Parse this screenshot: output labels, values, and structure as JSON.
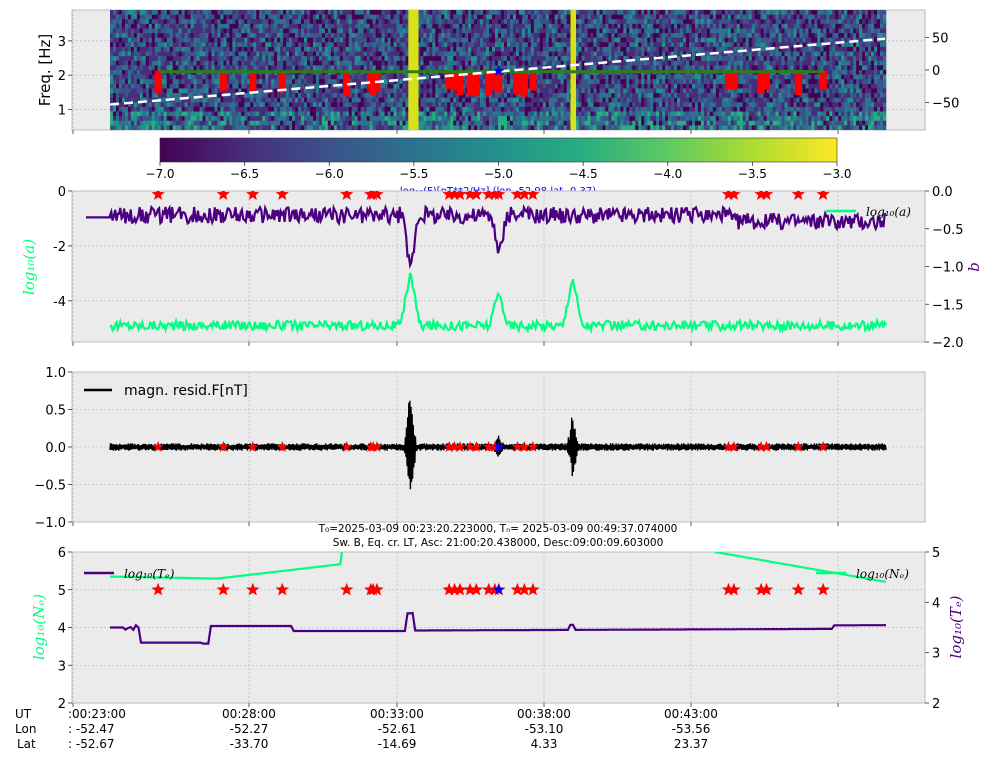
{
  "chart_data": [
    {
      "type": "heatmap",
      "ylabel": "Freq. [Hz]",
      "yticks": [
        1,
        2,
        3
      ],
      "ylim": [
        0.4,
        3.9
      ],
      "right_yticks": [
        "50",
        "0",
        "−50"
      ],
      "colorbar": {
        "ticks": [
          "−7.0",
          "−6.5",
          "−6.0",
          "−5.5",
          "−5.0",
          "−4.5",
          "−4.0",
          "−3.5",
          "−3.0"
        ],
        "range": [
          -7.0,
          -3.0
        ],
        "label": "log₁₀(F)[nT**2/Hz] (lon -52.98 lat -0.37)",
        "colormap": "viridis"
      },
      "bright_columns": [
        0.387,
        0.388,
        0.391,
        0.393,
        0.395,
        0.596,
        0.598
      ],
      "dashed_line": {
        "start": [
          0.046,
          -53
        ],
        "end": [
          1.0,
          48
        ],
        "color": "#ffffff"
      },
      "green_level": 2.1,
      "red_bar_centers": [
        0.062,
        0.146,
        0.184,
        0.222,
        0.305,
        0.336,
        0.339,
        0.344,
        0.437,
        0.444,
        0.451,
        0.464,
        0.472,
        0.488,
        0.496,
        0.501,
        0.525,
        0.534,
        0.545,
        0.797,
        0.804,
        0.839,
        0.846,
        0.887,
        0.919
      ],
      "marker": {
        "x": 0.501,
        "y": 2.12,
        "color": "#0000ff"
      }
    },
    {
      "type": "line",
      "ylabel": "log₁₀(a)",
      "right_ylabel": "b",
      "yticks": [
        0,
        -2,
        -4
      ],
      "ylim": [
        -5.5,
        0
      ],
      "right_yticks": [
        "0.0",
        "−0.5",
        "−1.0",
        "−1.5",
        "−2.0"
      ],
      "right_ylim": [
        -2.0,
        0.0
      ],
      "series": [
        {
          "name": "log₁₀(a)",
          "color": "#00ff80",
          "baseline": -4.9,
          "spikes": [
            [
              0.387,
              2.0
            ],
            [
              0.501,
              1.2
            ],
            [
              0.596,
              1.8
            ]
          ]
        },
        {
          "name": "",
          "color": "#4b0082",
          "baseline": -0.35,
          "dips": [
            [
              0.387,
              -0.75
            ],
            [
              0.501,
              -0.55
            ]
          ]
        }
      ],
      "stars_y": -0.05
    },
    {
      "type": "line",
      "ylim": [
        -1.0,
        1.0
      ],
      "yticks": [
        "1.0",
        "0.5",
        "0.0",
        "−0.5",
        "−1.0"
      ],
      "series": [
        {
          "name": "magn. resid.F[nT]",
          "color": "#000000",
          "noise": 0.05,
          "bursts": [
            [
              0.387,
              0.85
            ],
            [
              0.501,
              0.2
            ],
            [
              0.596,
              0.45
            ]
          ]
        }
      ],
      "stars_y": 0.0
    },
    {
      "type": "line",
      "title_line1": "T₀=2025-03-09 00:23:20.223000, Tₙ= 2025-03-09 00:49:37.074000",
      "title_line2": "Sw. B, Eq. cr. LT, Asc: 21:00:20.438000, Desc:09:00:09.603000",
      "ylabel": "log₁₀(Nₑ)",
      "right_ylabel": "log₁₀(Tₑ)",
      "yticks": [
        6,
        5,
        4,
        3,
        2
      ],
      "ylim": [
        2,
        6
      ],
      "right_yticks": [
        "5",
        "4",
        "3",
        "2"
      ],
      "right_ylim": [
        2,
        5
      ],
      "series": [
        {
          "name": "log₁₀(Tₑ)",
          "color": "#4b0082"
        },
        {
          "name": "log₁₀(Nₑ)",
          "color": "#00ff80"
        }
      ],
      "stars_y": 5.0
    }
  ],
  "xaxis": {
    "row_names": [
      "UT",
      "Lon",
      "Lat"
    ],
    "ticks": [
      {
        "ut": ":00:23:00",
        "lon": ":  -52.47",
        "lat": ":  -52.67",
        "pos": 0.0
      },
      {
        "ut": "00:28:00",
        "lon": "-52.27",
        "lat": "-33.70",
        "pos": 0.195
      },
      {
        "ut": "00:33:00",
        "lon": "-52.61",
        "lat": "-14.69",
        "pos": 0.384
      },
      {
        "ut": "00:38:00",
        "lon": "-53.10",
        "lat": "4.33",
        "pos": 0.573
      },
      {
        "ut": "00:43:00",
        "lon": "-53.56",
        "lat": "23.37",
        "pos": 0.762
      }
    ]
  },
  "colors": {
    "panel_bg": "#ebebeb",
    "grid": "#b0b0b0",
    "ne_color": "#00ff80",
    "te_color": "#4b0082",
    "star_red": "#ff0000",
    "star_blue": "#0000ff"
  }
}
